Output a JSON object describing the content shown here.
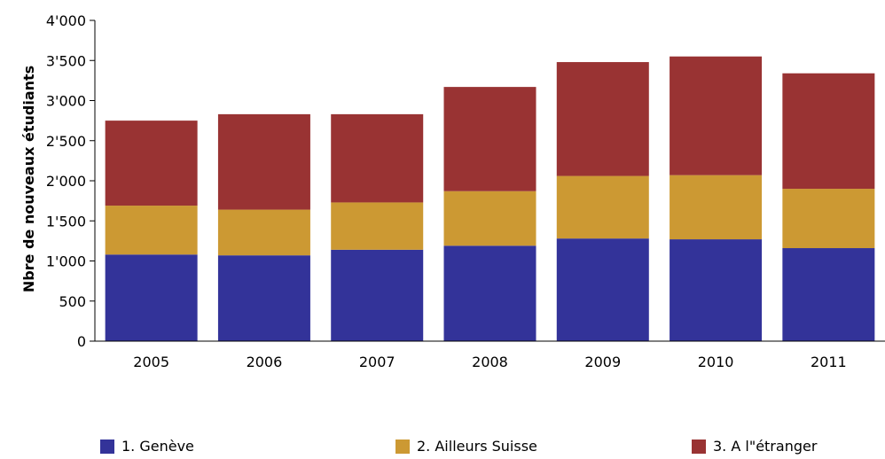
{
  "chart_data": {
    "type": "bar",
    "stacked": true,
    "categories": [
      "2005",
      "2006",
      "2007",
      "2008",
      "2009",
      "2010",
      "2011"
    ],
    "series": [
      {
        "name": "1. Genève",
        "color": "#333399",
        "values": [
          1080,
          1070,
          1140,
          1190,
          1280,
          1270,
          1160
        ]
      },
      {
        "name": "2. Ailleurs Suisse",
        "color": "#cc9933",
        "values": [
          610,
          570,
          590,
          680,
          780,
          800,
          740
        ]
      },
      {
        "name": "3. A l\"étranger",
        "color": "#993333",
        "values": [
          1060,
          1190,
          1100,
          1300,
          1420,
          1480,
          1440
        ]
      }
    ],
    "title": "",
    "xlabel": "",
    "ylabel": "Nbre de nouveaux étudiants",
    "ylim": [
      0,
      4000
    ],
    "yticks": [
      0,
      500,
      1000,
      1500,
      2000,
      2500,
      3000,
      3500,
      4000
    ],
    "ytick_labels": [
      "0",
      "500",
      "1'000",
      "1'500",
      "2'000",
      "2'500",
      "3'000",
      "3'500",
      "4'000"
    ],
    "grid": false,
    "legend_position": "bottom"
  }
}
